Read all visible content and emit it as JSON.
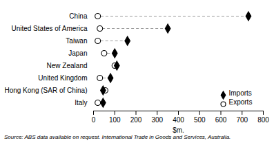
{
  "chart_data": {
    "type": "dumbbell",
    "categories": [
      "China",
      "United States of America",
      "Taiwan",
      "Japan",
      "New Zealand",
      "United Kingdom",
      "Hong Kong (SAR of China)",
      "Italy"
    ],
    "series": [
      {
        "name": "Imports",
        "color": "#000000",
        "marker": "diamond",
        "values": [
          730,
          350,
          160,
          100,
          110,
          80,
          45,
          45
        ]
      },
      {
        "name": "Exports",
        "color": "#ffffff",
        "marker": "circle",
        "values": [
          20,
          30,
          20,
          50,
          100,
          30,
          55,
          20
        ]
      }
    ],
    "xlabel": "$m.",
    "xlim": [
      0,
      800
    ],
    "xticks": [
      0,
      100,
      200,
      300,
      400,
      500,
      600,
      700,
      800
    ],
    "line_style": "dashed",
    "legend": "lower right",
    "caption": "Source: ABS data available on request.  International Trade in Goods and Services, Australia."
  }
}
